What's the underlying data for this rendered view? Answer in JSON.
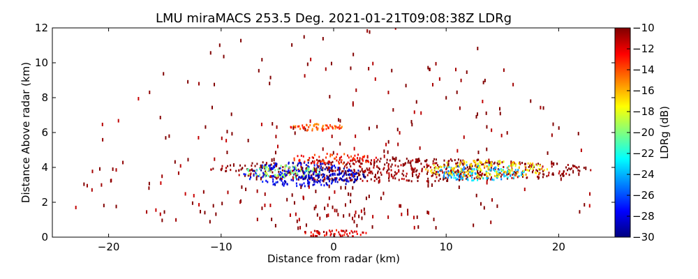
{
  "chart_data": {
    "type": "scatter",
    "title": "LMU miraMACS 253.5 Deg. 2021-01-21T09:08:38Z  LDRg",
    "xlabel": "Distance from radar (km)",
    "ylabel": "Distance Above radar  (km)",
    "xlim": [
      -25,
      25
    ],
    "ylim": [
      0,
      12
    ],
    "x_ticks": [
      -20,
      -10,
      0,
      10,
      20
    ],
    "x_tick_labels": [
      "−20",
      "−10",
      "0",
      "10",
      "20"
    ],
    "y_ticks": [
      0,
      2,
      4,
      6,
      8,
      10,
      12
    ],
    "y_tick_labels": [
      "0",
      "2",
      "4",
      "6",
      "8",
      "10",
      "12"
    ],
    "grid": false,
    "colorbar": {
      "label": "LDRg (dB)",
      "colormap": "jet",
      "range": [
        -30,
        -10
      ],
      "ticks": [
        -30,
        -28,
        -26,
        -24,
        -22,
        -20,
        -18,
        -16,
        -14,
        -12,
        -10
      ],
      "tick_labels": [
        "−30",
        "−28",
        "−26",
        "−24",
        "−22",
        "−20",
        "−18",
        "−16",
        "−14",
        "−12",
        "−10"
      ]
    },
    "features": [
      {
        "x": [
          -11,
          23
        ],
        "y": [
          3.2,
          4.5
        ],
        "ldr": -10
      },
      {
        "x": [
          -8,
          2
        ],
        "y": [
          2.9,
          4.3
        ],
        "ldr": -28
      },
      {
        "x": [
          -3,
          3
        ],
        "y": [
          3.0,
          4.0
        ],
        "ldr": -29
      },
      {
        "x": [
          -8,
          -1
        ],
        "y": [
          3.4,
          4.1
        ],
        "ldr": -20
      },
      {
        "x": [
          9,
          17
        ],
        "y": [
          3.2,
          4.2
        ],
        "ldr": -24
      },
      {
        "x": [
          8,
          19
        ],
        "y": [
          3.4,
          4.4
        ],
        "ldr": -17
      },
      {
        "x": [
          -4,
          4
        ],
        "y": [
          4.2,
          4.8
        ],
        "ldr": -13
      },
      {
        "x": [
          -4,
          1
        ],
        "y": [
          6.1,
          6.5
        ],
        "ldr": -14
      },
      {
        "x": [
          -3,
          3
        ],
        "y": [
          0.0,
          0.4
        ],
        "ldr": -12
      },
      {
        "x": [
          -23,
          23
        ],
        "y": [
          0.5,
          12
        ],
        "ldr": -10
      }
    ]
  }
}
